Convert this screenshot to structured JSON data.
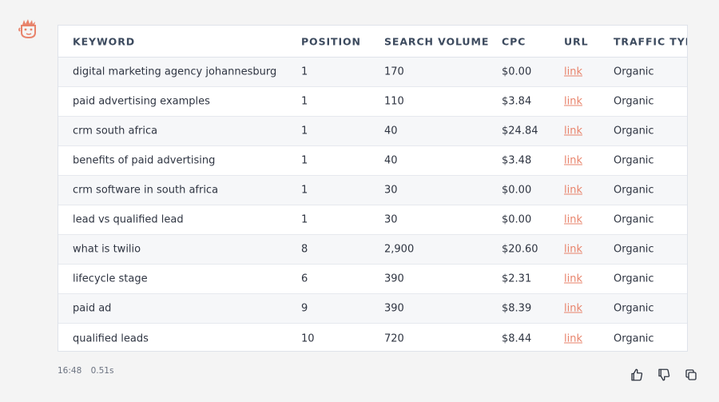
{
  "table": {
    "headers": [
      "KEYWORD",
      "POSITION",
      "SEARCH VOLUME",
      "CPC",
      "URL",
      "TRAFFIC TYPE"
    ],
    "rows": [
      {
        "keyword": "digital marketing agency johannesburg",
        "position": "1",
        "volume": "170",
        "cpc": "$0.00",
        "url": "link",
        "traffic": "Organic"
      },
      {
        "keyword": "paid advertising examples",
        "position": "1",
        "volume": "110",
        "cpc": "$3.84",
        "url": "link",
        "traffic": "Organic"
      },
      {
        "keyword": "crm south africa",
        "position": "1",
        "volume": "40",
        "cpc": "$24.84",
        "url": "link",
        "traffic": "Organic"
      },
      {
        "keyword": "benefits of paid advertising",
        "position": "1",
        "volume": "40",
        "cpc": "$3.48",
        "url": "link",
        "traffic": "Organic"
      },
      {
        "keyword": "crm software in south africa",
        "position": "1",
        "volume": "30",
        "cpc": "$0.00",
        "url": "link",
        "traffic": "Organic"
      },
      {
        "keyword": "lead vs qualified lead",
        "position": "1",
        "volume": "30",
        "cpc": "$0.00",
        "url": "link",
        "traffic": "Organic"
      },
      {
        "keyword": "what is twilio",
        "position": "8",
        "volume": "2,900",
        "cpc": "$20.60",
        "url": "link",
        "traffic": "Organic"
      },
      {
        "keyword": "lifecycle stage",
        "position": "6",
        "volume": "390",
        "cpc": "$2.31",
        "url": "link",
        "traffic": "Organic"
      },
      {
        "keyword": "paid ad",
        "position": "9",
        "volume": "390",
        "cpc": "$8.39",
        "url": "link",
        "traffic": "Organic"
      },
      {
        "keyword": "qualified leads",
        "position": "10",
        "volume": "720",
        "cpc": "$8.44",
        "url": "link",
        "traffic": "Organic"
      }
    ]
  },
  "meta": {
    "time": "16:48",
    "duration": "0.51s"
  },
  "icons": {
    "avatar": "bot-face-icon",
    "thumbs_up": "thumbs-up-icon",
    "thumbs_down": "thumbs-down-icon",
    "copy": "copy-icon"
  },
  "colors": {
    "accent": "#e8836b",
    "link": "#e8836b"
  }
}
